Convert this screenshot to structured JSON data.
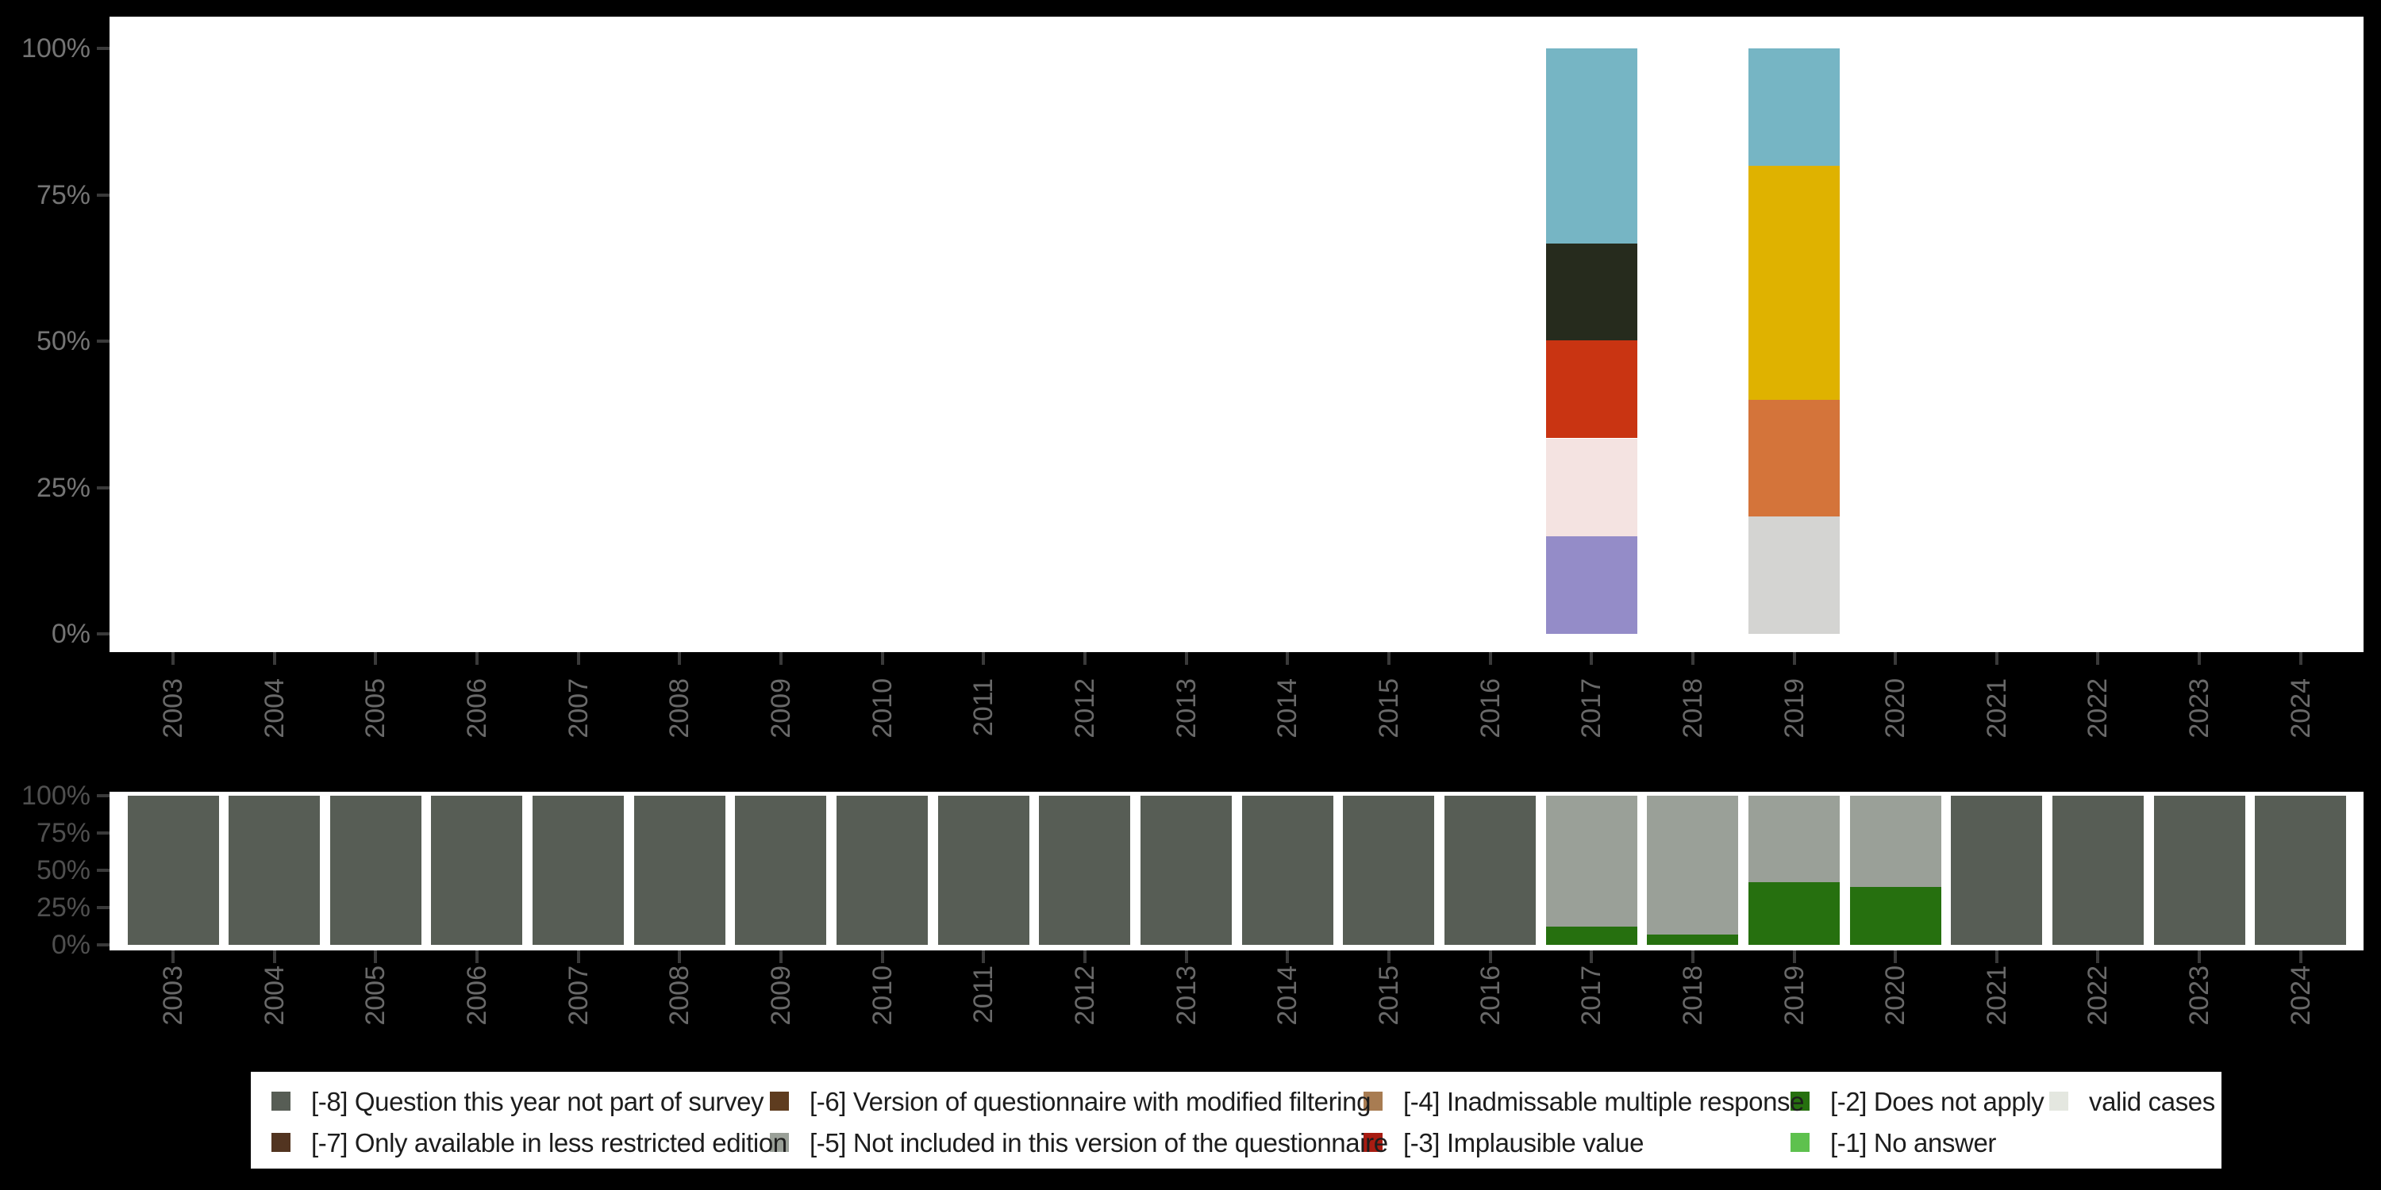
{
  "background_color": "#000000",
  "panel_color": "#ffffff",
  "axis": {
    "x_tick_labels": [
      "2003",
      "2004",
      "2005",
      "2006",
      "2007",
      "2008",
      "2009",
      "2010",
      "2011",
      "2012",
      "2013",
      "2014",
      "2015",
      "2016",
      "2017",
      "2018",
      "2019",
      "2020",
      "2021",
      "2022",
      "2023",
      "2024"
    ],
    "y_tick_labels": [
      "100%",
      "75%",
      "50%",
      "25%",
      "0%"
    ],
    "y_tick_values": [
      100,
      75,
      50,
      25,
      0
    ],
    "x_label_color": "#696969",
    "top_y_label_color": "#747474",
    "bottom_y_label_color": "#4f4f4f",
    "tick_color": "#3a3a3a"
  },
  "chart_data": [
    {
      "type": "bar",
      "stacked": true,
      "title": "",
      "xlabel": "",
      "ylabel": "",
      "ylim": [
        0,
        100
      ],
      "grid": false,
      "categories": [
        "2003",
        "2004",
        "2005",
        "2006",
        "2007",
        "2008",
        "2009",
        "2010",
        "2011",
        "2012",
        "2013",
        "2014",
        "2015",
        "2016",
        "2017",
        "2018",
        "2019",
        "2020",
        "2021",
        "2022",
        "2023",
        "2024"
      ],
      "y_ticks": [
        "0%",
        "25%",
        "50%",
        "75%",
        "100%"
      ],
      "series": [
        {
          "name": "purple-segment",
          "color": "#948cc8",
          "values": [
            0,
            0,
            0,
            0,
            0,
            0,
            0,
            0,
            0,
            0,
            0,
            0,
            0,
            0,
            16.7,
            0,
            0,
            0,
            0,
            0,
            0,
            0
          ]
        },
        {
          "name": "pale-pink-segment",
          "color": "#f4e3e1",
          "values": [
            0,
            0,
            0,
            0,
            0,
            0,
            0,
            0,
            0,
            0,
            0,
            0,
            0,
            0,
            16.7,
            0,
            0,
            0,
            0,
            0,
            0,
            0
          ]
        },
        {
          "name": "vermillion-segment",
          "color": "#c93412",
          "values": [
            0,
            0,
            0,
            0,
            0,
            0,
            0,
            0,
            0,
            0,
            0,
            0,
            0,
            0,
            16.7,
            0,
            0,
            0,
            0,
            0,
            0,
            0
          ]
        },
        {
          "name": "dark-olive-segment",
          "color": "#262b1d",
          "values": [
            0,
            0,
            0,
            0,
            0,
            0,
            0,
            0,
            0,
            0,
            0,
            0,
            0,
            0,
            16.6,
            0,
            0,
            0,
            0,
            0,
            0,
            0
          ]
        },
        {
          "name": "light-gray-segment",
          "color": "#d4d4d2",
          "values": [
            0,
            0,
            0,
            0,
            0,
            0,
            0,
            0,
            0,
            0,
            0,
            0,
            0,
            0,
            0,
            0,
            20,
            0,
            0,
            0,
            0,
            0
          ]
        },
        {
          "name": "orange-segment",
          "color": "#d4743a",
          "values": [
            0,
            0,
            0,
            0,
            0,
            0,
            0,
            0,
            0,
            0,
            0,
            0,
            0,
            0,
            0,
            0,
            20,
            0,
            0,
            0,
            0,
            0
          ]
        },
        {
          "name": "yellow-segment",
          "color": "#dfb200",
          "values": [
            0,
            0,
            0,
            0,
            0,
            0,
            0,
            0,
            0,
            0,
            0,
            0,
            0,
            0,
            0,
            0,
            40,
            0,
            0,
            0,
            0,
            0
          ]
        },
        {
          "name": "teal-segment",
          "color": "#76b5c4",
          "values": [
            0,
            0,
            0,
            0,
            0,
            0,
            0,
            0,
            0,
            0,
            0,
            0,
            0,
            0,
            33.3,
            0,
            20,
            0,
            0,
            0,
            0,
            0
          ]
        }
      ]
    },
    {
      "type": "bar",
      "stacked": true,
      "title": "",
      "xlabel": "",
      "ylabel": "",
      "ylim": [
        0,
        100
      ],
      "grid": false,
      "categories": [
        "2003",
        "2004",
        "2005",
        "2006",
        "2007",
        "2008",
        "2009",
        "2010",
        "2011",
        "2012",
        "2013",
        "2014",
        "2015",
        "2016",
        "2017",
        "2018",
        "2019",
        "2020",
        "2021",
        "2022",
        "2023",
        "2024"
      ],
      "y_ticks": [
        "0%",
        "25%",
        "50%",
        "75%",
        "100%"
      ],
      "series": [
        {
          "name": "[-2] Does not apply",
          "color": "#26700f",
          "values": [
            0,
            0,
            0,
            0,
            0,
            0,
            0,
            0,
            0,
            0,
            0,
            0,
            0,
            0,
            12,
            7,
            42,
            39,
            0,
            0,
            0,
            0
          ]
        },
        {
          "name": "[-5] Not included in this version of the questionnaire",
          "color": "#9aa098",
          "values": [
            0,
            0,
            0,
            0,
            0,
            0,
            0,
            0,
            0,
            0,
            0,
            0,
            0,
            0,
            88,
            93,
            58,
            61,
            0,
            0,
            0,
            0
          ]
        },
        {
          "name": "[-8] Question this year not part of survey",
          "color": "#575d55",
          "values": [
            100,
            100,
            100,
            100,
            100,
            100,
            100,
            100,
            100,
            100,
            100,
            100,
            100,
            100,
            0,
            0,
            0,
            0,
            100,
            100,
            100,
            100
          ]
        }
      ]
    }
  ],
  "legend": {
    "items": [
      {
        "label": "[-8] Question this year not part of survey",
        "color": "#575d55",
        "row": 0,
        "col": 0
      },
      {
        "label": "[-6] Version of questionnaire with modified filtering",
        "color": "#5e3c1f",
        "row": 0,
        "col": 1
      },
      {
        "label": "[-4] Inadmissable multiple response",
        "color": "#a87c52",
        "row": 0,
        "col": 2
      },
      {
        "label": "[-2] Does not apply",
        "color": "#26700f",
        "row": 0,
        "col": 3
      },
      {
        "label": "valid cases",
        "color": "#e4e7e0",
        "row": 0,
        "col": 4
      },
      {
        "label": "[-7] Only available in less restricted edition",
        "color": "#523420",
        "row": 1,
        "col": 0
      },
      {
        "label": "[-5] Not included in this version of the questionnaire",
        "color": "#9aa098",
        "row": 1,
        "col": 1
      },
      {
        "label": "[-3] Implausible value",
        "color": "#a81c12",
        "row": 1,
        "col": 2
      },
      {
        "label": "[-1] No answer",
        "color": "#5ec14e",
        "row": 1,
        "col": 3
      }
    ]
  }
}
